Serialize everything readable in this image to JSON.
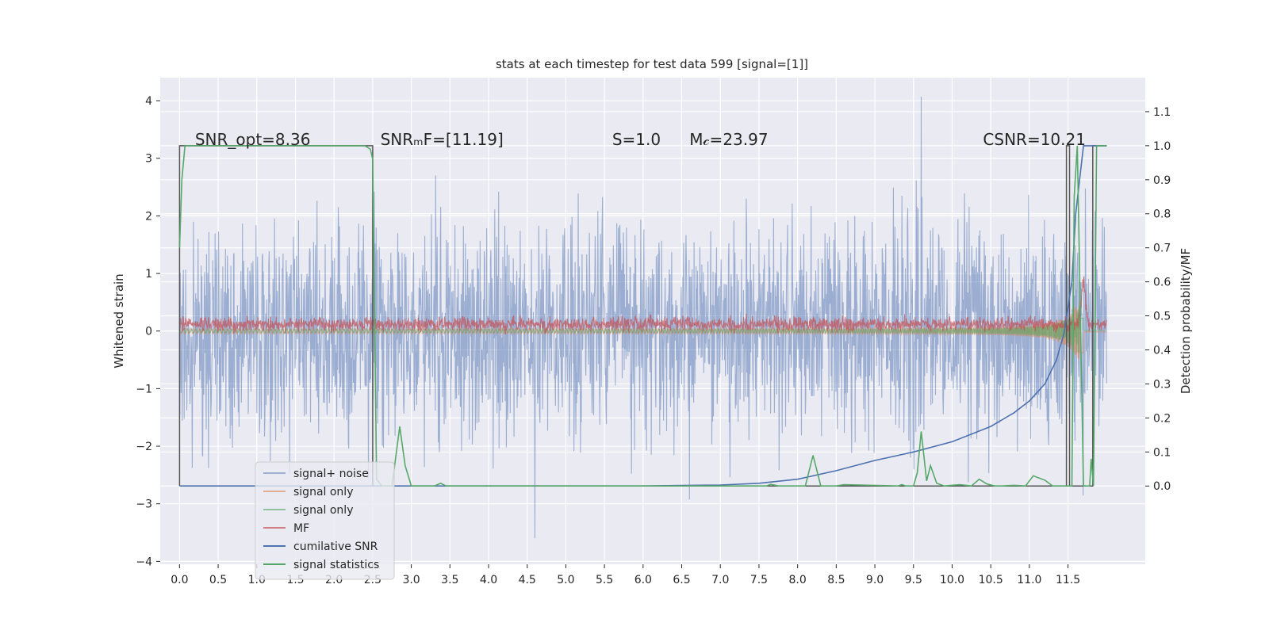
{
  "chart_data": {
    "type": "line",
    "title": "stats at each timestep for test data 599 [signal=[1]]",
    "ylabel": "Whitened strain",
    "y2label": "Detection probability/MF",
    "xlim": [
      -0.25,
      12.5
    ],
    "ylim": [
      -4.05,
      4.4
    ],
    "y2lim": [
      -0.23,
      1.2
    ],
    "x_ticks": [
      0.0,
      0.5,
      1.0,
      1.5,
      2.0,
      2.5,
      3.0,
      3.5,
      4.0,
      4.5,
      5.0,
      5.5,
      6.0,
      6.5,
      7.0,
      7.5,
      8.0,
      8.5,
      9.0,
      9.5,
      10.0,
      10.5,
      11.0,
      11.5
    ],
    "x_tick_labels": [
      "0.0",
      "0.5",
      "1.0",
      "1.5",
      "2.0",
      "2.5",
      "3.0",
      "3.5",
      "4.0",
      "4.5",
      "5.0",
      "5.5",
      "6.0",
      "6.5",
      "7.0",
      "7.5",
      "8.0",
      "8.5",
      "9.0",
      "9.5",
      "10.0",
      "10.5",
      "11.0",
      "11.5"
    ],
    "y_ticks": [
      4,
      3,
      2,
      1,
      0,
      -1,
      -2,
      -3,
      -4
    ],
    "y_tick_labels": [
      "4",
      "3",
      "2",
      "1",
      "0",
      "−1",
      "−2",
      "−3",
      "−4"
    ],
    "y2_ticks": [
      1.1,
      1.0,
      0.9,
      0.8,
      0.7,
      0.6,
      0.5,
      0.4,
      0.3,
      0.2,
      0.1,
      0.0
    ],
    "y2_tick_labels": [
      "1.1",
      "1.0",
      "0.9",
      "0.8",
      "0.7",
      "0.6",
      "0.5",
      "0.4",
      "0.3",
      "0.2",
      "0.1",
      "0.0"
    ],
    "grid": true,
    "legend_position": "bottom-left",
    "annotations": [
      {
        "text": "SNR_opt=8.36",
        "x": 0.2,
        "y2": 1.0
      },
      {
        "text": "SNRₘF=[11.19]",
        "x": 2.6,
        "y2": 1.0
      },
      {
        "text": "S=1.0",
        "x": 5.6,
        "y2": 1.0
      },
      {
        "text": "M𝒸=23.97",
        "x": 6.6,
        "y2": 1.0
      },
      {
        "text": "CSNR=10.21",
        "x": 10.4,
        "y2": 1.0
      }
    ],
    "series": [
      {
        "name": "signal+ noise",
        "axis": "left",
        "color": "#4c72b0",
        "opacity": 0.5,
        "x_range": [
          0.0,
          12.0
        ],
        "typical_range": [
          -2.2,
          2.1
        ],
        "max_peak": 4.07,
        "max_peak_x": 9.6,
        "min_peak": -3.62,
        "min_peak_x": 4.6
      },
      {
        "name": "signal only",
        "axis": "left",
        "color": "#dd8452",
        "opacity": 0.6,
        "x_range": [
          0.0,
          12.0
        ],
        "amplitude_start": 0.05,
        "amplitude_end": 0.6,
        "merger_x": 11.65
      },
      {
        "name": "signal only",
        "axis": "left",
        "color": "#55a868",
        "opacity": 0.6,
        "x_range": [
          0.0,
          12.0
        ],
        "amplitude_start": 0.03,
        "amplitude_end": 0.5,
        "merger_x": 11.65
      },
      {
        "name": "MF",
        "axis": "left",
        "color": "#c44e52",
        "opacity": 0.7,
        "x_range": [
          0.0,
          12.0
        ],
        "baseline": 0.12,
        "peak": 1.0,
        "peak_x": 11.7
      },
      {
        "name": "cumilative SNR",
        "axis": "right",
        "color": "#4c72b0",
        "x": [
          0.0,
          6.0,
          7.0,
          7.5,
          8.0,
          8.5,
          9.0,
          9.5,
          10.0,
          10.5,
          10.8,
          11.0,
          11.2,
          11.35,
          11.45,
          11.55,
          11.6,
          11.7,
          12.0
        ],
        "y": [
          0.0,
          0.0,
          0.003,
          0.008,
          0.02,
          0.045,
          0.075,
          0.1,
          0.13,
          0.175,
          0.215,
          0.25,
          0.3,
          0.37,
          0.45,
          0.6,
          0.8,
          1.0,
          1.0
        ]
      },
      {
        "name": "signal statistics",
        "axis": "right",
        "color": "#55a868",
        "x": [
          0.0,
          0.03,
          0.07,
          0.12,
          2.4,
          2.47,
          2.5,
          2.55,
          2.62,
          2.75,
          2.85,
          2.92,
          3.0,
          3.3,
          3.38,
          3.45,
          3.6,
          7.6,
          7.65,
          7.75,
          8.1,
          8.2,
          8.3,
          8.5,
          8.6,
          9.3,
          9.35,
          9.4,
          9.5,
          9.55,
          9.6,
          9.67,
          9.72,
          9.8,
          9.9,
          10.1,
          10.25,
          10.35,
          10.45,
          10.55,
          10.65,
          10.8,
          10.95,
          11.05,
          11.2,
          11.3,
          11.4,
          11.48,
          11.55,
          11.58,
          11.62,
          11.7,
          11.78,
          11.8,
          11.83,
          11.87,
          11.9,
          12.0
        ],
        "y": [
          0.7,
          0.9,
          1.0,
          1.0,
          1.0,
          0.99,
          0.96,
          0.02,
          0.0,
          0.0,
          0.175,
          0.06,
          0.0,
          0.0,
          0.008,
          0.0,
          0.0,
          0.0,
          0.005,
          0.0,
          0.0,
          0.09,
          0.0,
          0.0,
          0.004,
          0.0,
          0.004,
          0.0,
          0.0,
          0.04,
          0.16,
          0.015,
          0.06,
          0.008,
          0.0,
          0.004,
          0.0,
          0.02,
          0.006,
          0.0,
          0.0,
          0.002,
          0.0,
          0.03,
          0.017,
          0.0,
          0.0,
          0.0,
          0.0,
          0.85,
          1.0,
          0.0,
          0.0,
          0.08,
          0.0,
          1.0,
          1.0,
          1.0
        ]
      }
    ],
    "step_lines": {
      "axis": "right",
      "color": "#555555",
      "x": [
        0.0,
        0.0,
        2.5,
        2.5,
        11.48,
        11.48,
        11.52,
        11.52,
        11.82,
        11.82,
        12.0
      ],
      "y": [
        0.0,
        1.0,
        1.0,
        0.0,
        0.0,
        1.0,
        1.0,
        0.0,
        0.0,
        1.0,
        1.0
      ]
    }
  }
}
